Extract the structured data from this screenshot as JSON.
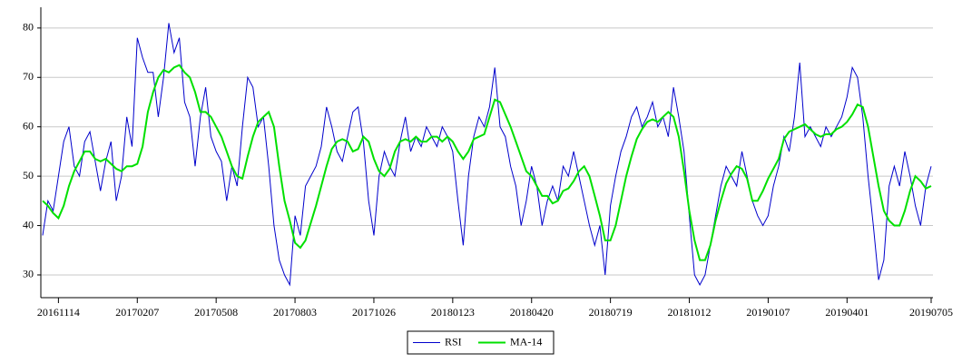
{
  "chart_data": {
    "type": "line",
    "categories": [
      null,
      null,
      null,
      "20161114",
      null,
      null,
      null,
      null,
      null,
      null,
      null,
      null,
      null,
      null,
      null,
      null,
      null,
      null,
      "20170207",
      null,
      null,
      null,
      null,
      null,
      null,
      null,
      null,
      null,
      null,
      null,
      null,
      null,
      null,
      "20170508",
      null,
      null,
      null,
      null,
      null,
      null,
      null,
      null,
      null,
      null,
      null,
      null,
      null,
      null,
      "20170803",
      null,
      null,
      null,
      null,
      null,
      null,
      null,
      null,
      null,
      null,
      null,
      null,
      null,
      null,
      "20171026",
      null,
      null,
      null,
      null,
      null,
      null,
      null,
      null,
      null,
      null,
      null,
      null,
      null,
      null,
      "20180123",
      null,
      null,
      null,
      null,
      null,
      null,
      null,
      null,
      null,
      null,
      null,
      null,
      null,
      null,
      "20180420",
      null,
      null,
      null,
      null,
      null,
      null,
      null,
      null,
      null,
      null,
      null,
      null,
      null,
      null,
      "20180719",
      null,
      null,
      null,
      null,
      null,
      null,
      null,
      null,
      null,
      null,
      null,
      null,
      null,
      null,
      "20181012",
      null,
      null,
      null,
      null,
      null,
      null,
      null,
      null,
      null,
      null,
      null,
      null,
      null,
      null,
      "20190107",
      null,
      null,
      null,
      null,
      null,
      null,
      null,
      null,
      null,
      null,
      null,
      null,
      null,
      null,
      "20190401",
      null,
      null,
      null,
      null,
      null,
      null,
      null,
      null,
      null,
      null,
      null,
      null,
      null,
      null,
      null,
      "20190705"
    ],
    "series": [
      {
        "name": "RSI",
        "color": "#0000cc",
        "values": [
          38,
          45,
          43,
          50,
          57,
          60,
          52,
          50,
          57,
          59,
          53,
          47,
          53,
          57,
          45,
          50,
          62,
          56,
          78,
          74,
          71,
          71,
          62,
          70,
          81,
          75,
          78,
          65,
          62,
          52,
          62,
          68,
          58,
          55,
          53,
          45,
          52,
          48,
          60,
          70,
          68,
          60,
          62,
          52,
          40,
          33,
          30,
          28,
          42,
          38,
          48,
          50,
          52,
          56,
          64,
          60,
          55,
          53,
          58,
          63,
          64,
          57,
          45,
          38,
          50,
          55,
          52,
          50,
          57,
          62,
          55,
          58,
          56,
          60,
          58,
          56,
          60,
          58,
          55,
          45,
          36,
          50,
          58,
          62,
          60,
          64,
          72,
          60,
          58,
          52,
          48,
          40,
          45,
          52,
          48,
          40,
          45,
          48,
          45,
          52,
          50,
          55,
          50,
          45,
          40,
          36,
          40,
          30,
          44,
          50,
          55,
          58,
          62,
          64,
          60,
          62,
          65,
          60,
          62,
          58,
          68,
          62,
          55,
          42,
          30,
          28,
          30,
          36,
          42,
          48,
          52,
          50,
          48,
          55,
          50,
          45,
          42,
          40,
          42,
          48,
          52,
          58,
          55,
          62,
          73,
          58,
          60,
          58,
          56,
          60,
          58,
          60,
          62,
          66,
          72,
          70,
          62,
          50,
          40,
          29,
          33,
          48,
          52,
          48,
          55,
          50,
          44,
          40,
          48,
          52
        ]
      },
      {
        "name": "MA-14",
        "color": "#00e000",
        "values": [
          45,
          44,
          42.5,
          41.5,
          44,
          48,
          51,
          53,
          55,
          55,
          53.5,
          53,
          53.5,
          52.5,
          51.5,
          51,
          52,
          52,
          52.5,
          56,
          63,
          67,
          70,
          71.5,
          71,
          72,
          72.5,
          71,
          70,
          67,
          63,
          63,
          62,
          60,
          58,
          55,
          52,
          50,
          49.5,
          54,
          58,
          61,
          62,
          63,
          60,
          52,
          45,
          41,
          36.5,
          35.5,
          37,
          40.5,
          44,
          48,
          52,
          55.5,
          57,
          57.5,
          57,
          55,
          55.5,
          58,
          57,
          53.5,
          51,
          50,
          51.5,
          55,
          57,
          57.5,
          57,
          58,
          57,
          57,
          58,
          58,
          57,
          58,
          57,
          55,
          53.5,
          55,
          57.5,
          58,
          58.5,
          62,
          65.5,
          65,
          62.5,
          60,
          57,
          54,
          51,
          50,
          48,
          46,
          46,
          44.5,
          45,
          47,
          47.5,
          49,
          51,
          52,
          50,
          46,
          42,
          37,
          37,
          40,
          45,
          50,
          54,
          57.5,
          59.5,
          61,
          61.5,
          61,
          62,
          63,
          62,
          58,
          51,
          43,
          37,
          33,
          33,
          36,
          41,
          45,
          48.5,
          50.5,
          52,
          51.5,
          49.5,
          45,
          45,
          47,
          49.5,
          51.5,
          53.5,
          57.5,
          59,
          59.5,
          60,
          60.5,
          59.5,
          58.5,
          58,
          58.5,
          58.5,
          59.5,
          60,
          61,
          62.5,
          64.5,
          64,
          60,
          54,
          48,
          43,
          41,
          40,
          40,
          43,
          47,
          50,
          49,
          47.5,
          48
        ]
      }
    ],
    "ylim": [
      25.4,
      84.2
    ],
    "yticks": [
      30,
      40,
      50,
      60,
      70,
      80
    ],
    "grid": true,
    "legend": "bottom"
  }
}
